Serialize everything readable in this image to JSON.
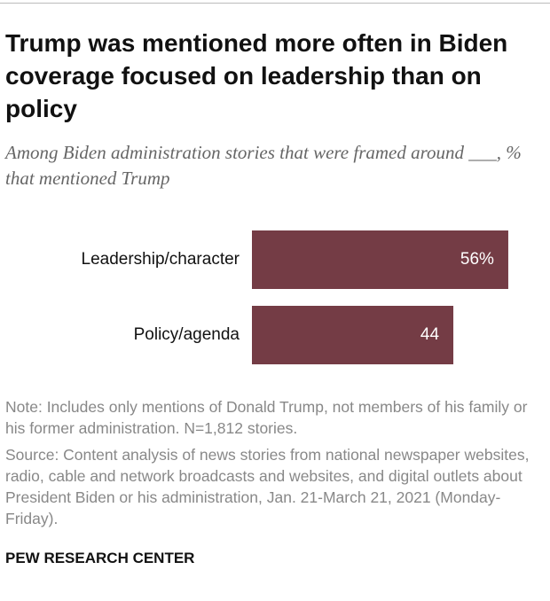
{
  "chart_data": {
    "type": "bar",
    "orientation": "horizontal",
    "title": "Trump was mentioned more often in Biden coverage focused on leadership than on policy",
    "subtitle": "Among Biden administration stories that were framed around ___, % that mentioned Trump",
    "categories": [
      "Leadership/character",
      "Policy/agenda"
    ],
    "values": [
      56,
      44
    ],
    "value_labels": [
      "56%",
      "44"
    ],
    "color": "#743c45",
    "note": "Note: Includes only mentions of Donald Trump, not members of his family or his former administration. N=1,812 stories.",
    "source": "Source: Content analysis of news stories from national newspaper websites, radio, cable and network broadcasts and websites, and digital outlets about President Biden or his administration, Jan. 21-March 21, 2021 (Monday-Friday).",
    "footer": "PEW RESEARCH CENTER"
  }
}
